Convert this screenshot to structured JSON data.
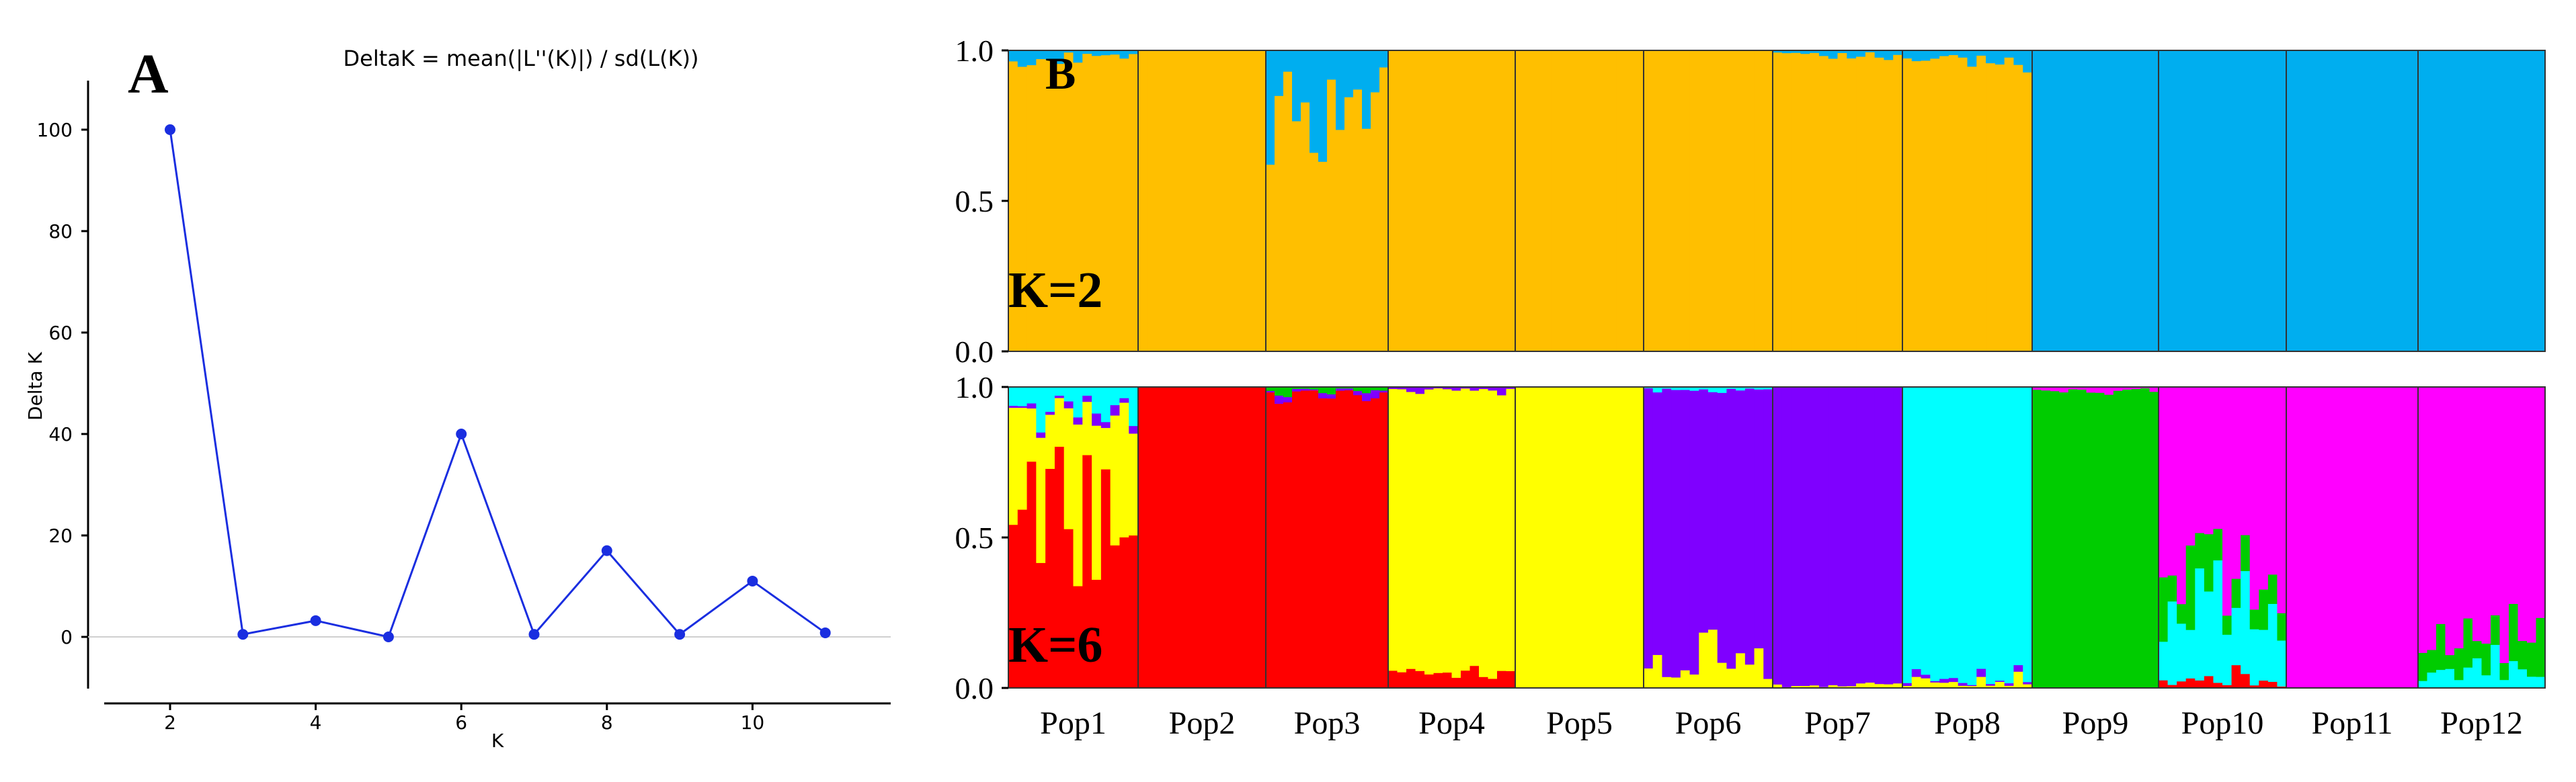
{
  "chart_data": [
    {
      "type": "line",
      "panel_label": "A",
      "title": "DeltaK = mean(|L''(K)|) / sd(L(K))",
      "xlabel": "K",
      "ylabel": "Delta K",
      "x": [
        2,
        3,
        4,
        5,
        6,
        7,
        8,
        9,
        10,
        11
      ],
      "y": [
        100,
        0.5,
        3.2,
        0,
        40,
        0.5,
        17,
        0.5,
        11,
        0.8
      ],
      "xlim": [
        1,
        12
      ],
      "ylim": [
        -10,
        110
      ],
      "xticks": [
        "2",
        "4",
        "6",
        "8",
        "10"
      ],
      "yticks": [
        "0",
        "20",
        "40",
        "60",
        "80",
        "100"
      ],
      "color": "#1a2ee0"
    },
    {
      "type": "bar",
      "subtype": "stacked-structure-plot",
      "panel_label": "B",
      "populations": [
        "Pop1",
        "Pop2",
        "Pop3",
        "Pop4",
        "Pop5",
        "Pop6",
        "Pop7",
        "Pop8",
        "Pop9",
        "Pop10",
        "Pop11",
        "Pop12"
      ],
      "yticks": [
        "0.0",
        "0.5",
        "1.0"
      ],
      "ylim": [
        0,
        1
      ],
      "rows": [
        {
          "label": "K=2",
          "clusters": [
            {
              "name": "cluster1",
              "color": "#FFBF00"
            },
            {
              "name": "cluster2",
              "color": "#00AEEF"
            }
          ],
          "population_means": [
            [
              0.98,
              0.02
            ],
            [
              1.0,
              0.0
            ],
            [
              0.86,
              0.14
            ],
            [
              1.0,
              0.0
            ],
            [
              1.0,
              0.0
            ],
            [
              1.0,
              0.0
            ],
            [
              0.98,
              0.02
            ],
            [
              0.97,
              0.03
            ],
            [
              0.0,
              1.0
            ],
            [
              0.0,
              1.0
            ],
            [
              0.0,
              1.0
            ],
            [
              0.0,
              1.0
            ]
          ]
        },
        {
          "label": "K=6",
          "clusters": [
            {
              "name": "cluster1",
              "color": "#FF0000"
            },
            {
              "name": "cluster2",
              "color": "#FFFF00"
            },
            {
              "name": "cluster3",
              "color": "#7F00FF"
            },
            {
              "name": "cluster4",
              "color": "#00FFFF"
            },
            {
              "name": "cluster5",
              "color": "#00CC00"
            },
            {
              "name": "cluster6",
              "color": "#FF00FF"
            }
          ],
          "population_means": [
            [
              0.55,
              0.35,
              0.02,
              0.08,
              0.0,
              0.0
            ],
            [
              1.0,
              0.0,
              0.0,
              0.0,
              0.0,
              0.0
            ],
            [
              0.98,
              0.0,
              0.01,
              0.0,
              0.01,
              0.0
            ],
            [
              0.06,
              0.93,
              0.01,
              0.0,
              0.0,
              0.0
            ],
            [
              0.0,
              1.0,
              0.0,
              0.0,
              0.0,
              0.0
            ],
            [
              0.0,
              0.08,
              0.91,
              0.01,
              0.0,
              0.0
            ],
            [
              0.0,
              0.01,
              0.99,
              0.0,
              0.0,
              0.0
            ],
            [
              0.0,
              0.02,
              0.01,
              0.97,
              0.0,
              0.0
            ],
            [
              0.0,
              0.0,
              0.0,
              0.0,
              0.99,
              0.01
            ],
            [
              0.02,
              0.0,
              0.0,
              0.2,
              0.1,
              0.68
            ],
            [
              0.0,
              0.0,
              0.0,
              0.0,
              0.0,
              1.0
            ],
            [
              0.0,
              0.0,
              0.0,
              0.05,
              0.1,
              0.85
            ]
          ]
        }
      ]
    }
  ]
}
